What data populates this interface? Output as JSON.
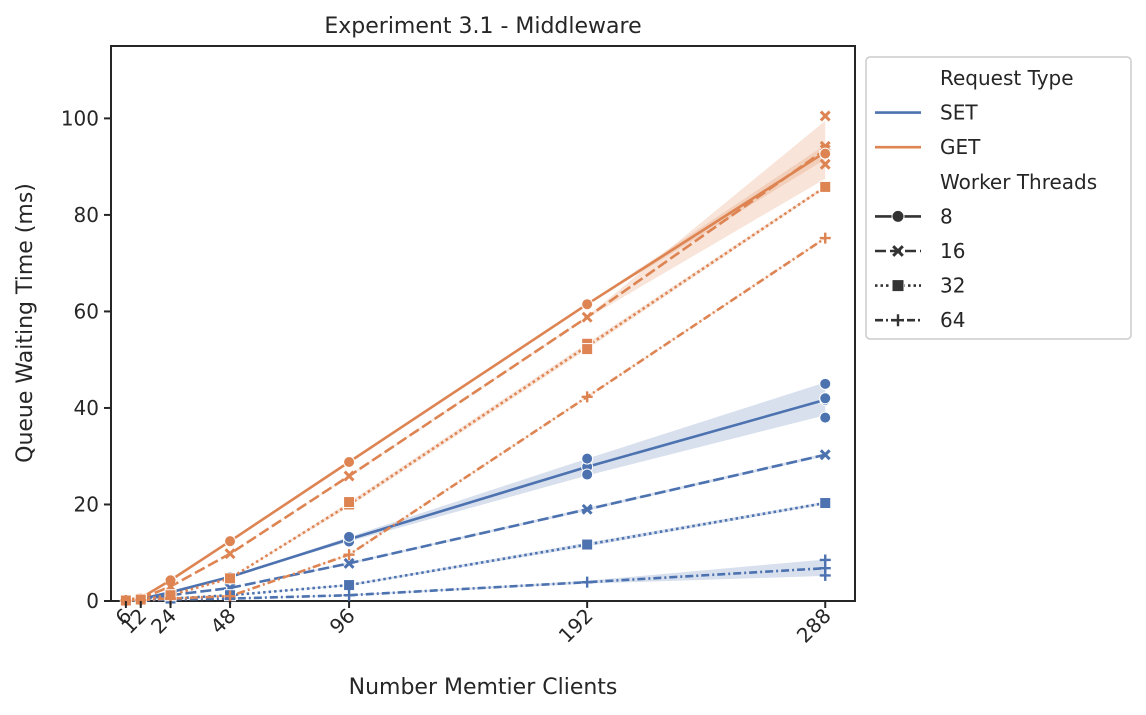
{
  "chart_data": {
    "type": "line",
    "title": "Experiment 3.1 - Middleware",
    "xlabel": "Number Memtier Clients",
    "ylabel": "Queue Waiting Time (ms)",
    "x": [
      6,
      12,
      24,
      48,
      96,
      192,
      288
    ],
    "xticks": [
      "6",
      "12",
      "24",
      "48",
      "96",
      "192",
      "288"
    ],
    "xlim": [
      0,
      300
    ],
    "ylim": [
      0,
      115
    ],
    "yticks": [
      0,
      20,
      40,
      60,
      80,
      100
    ],
    "ytick_labels": [
      "0",
      "20",
      "40",
      "60",
      "80",
      "100"
    ],
    "grid": false,
    "legend": {
      "placement": "outside-right",
      "hue_title": "Request Type",
      "style_title": "Worker Threads",
      "hue_entries": [
        {
          "label": "SET",
          "color": "#4c72b0"
        },
        {
          "label": "GET",
          "color": "#dd8452"
        }
      ],
      "style_entries": [
        {
          "label": "8",
          "dash": "solid",
          "marker": "circle"
        },
        {
          "label": "16",
          "dash": "dashed",
          "marker": "x"
        },
        {
          "label": "32",
          "dash": "dotted",
          "marker": "square"
        },
        {
          "label": "64",
          "dash": "dashdot",
          "marker": "plus"
        }
      ]
    },
    "series": [
      {
        "hue": "SET",
        "threads": "8",
        "color": "#4c72b0",
        "dash": "solid",
        "marker": "circle",
        "values": [
          0.2,
          0.4,
          1.8,
          5.0,
          12.8,
          27.8,
          41.7
        ],
        "band": [
          [
            0.2,
            0.2
          ],
          [
            0.4,
            0.4
          ],
          [
            1.8,
            1.8
          ],
          [
            5.0,
            5.0
          ],
          [
            12.3,
            13.3
          ],
          [
            26.0,
            29.5
          ],
          [
            38.5,
            45.3
          ]
        ]
      },
      {
        "hue": "SET",
        "threads": "16",
        "color": "#4c72b0",
        "dash": "dashed",
        "marker": "x",
        "values": [
          0.1,
          0.3,
          1.2,
          2.7,
          7.8,
          19.0,
          30.3
        ],
        "band": [
          [
            0.1,
            0.1
          ],
          [
            0.3,
            0.3
          ],
          [
            1.2,
            1.2
          ],
          [
            2.7,
            2.7
          ],
          [
            7.6,
            8.0
          ],
          [
            18.7,
            19.3
          ],
          [
            30.0,
            30.6
          ]
        ]
      },
      {
        "hue": "SET",
        "threads": "32",
        "color": "#4c72b0",
        "dash": "dotted",
        "marker": "square",
        "values": [
          0.1,
          0.2,
          0.5,
          1.2,
          3.3,
          11.7,
          20.3
        ],
        "band": [
          [
            0.1,
            0.1
          ],
          [
            0.2,
            0.2
          ],
          [
            0.5,
            0.5
          ],
          [
            1.2,
            1.2
          ],
          [
            3.1,
            3.5
          ],
          [
            11.3,
            12.1
          ],
          [
            20.0,
            20.6
          ]
        ]
      },
      {
        "hue": "SET",
        "threads": "64",
        "color": "#4c72b0",
        "dash": "dashdot",
        "marker": "plus",
        "values": [
          0.1,
          0.1,
          0.3,
          0.5,
          1.2,
          3.9,
          6.8
        ],
        "band": [
          [
            0.1,
            0.1
          ],
          [
            0.1,
            0.1
          ],
          [
            0.3,
            0.3
          ],
          [
            0.5,
            0.5
          ],
          [
            1.1,
            1.3
          ],
          [
            3.6,
            4.2
          ],
          [
            5.2,
            8.6
          ]
        ]
      },
      {
        "hue": "GET",
        "threads": "8",
        "color": "#dd8452",
        "dash": "solid",
        "marker": "circle",
        "values": [
          0.3,
          0.6,
          4.3,
          12.4,
          28.8,
          61.5,
          93.0
        ],
        "band": [
          [
            0.3,
            0.3
          ],
          [
            0.6,
            0.6
          ],
          [
            4.3,
            4.3
          ],
          [
            12.4,
            12.4
          ],
          [
            28.6,
            29.0
          ],
          [
            61.3,
            61.7
          ],
          [
            91.5,
            94.5
          ]
        ]
      },
      {
        "hue": "GET",
        "threads": "16",
        "color": "#dd8452",
        "dash": "dashed",
        "marker": "x",
        "values": [
          0.2,
          0.5,
          3.0,
          9.8,
          25.9,
          58.8,
          93.5
        ],
        "band": [
          [
            0.2,
            0.2
          ],
          [
            0.5,
            0.5
          ],
          [
            3.0,
            3.0
          ],
          [
            9.8,
            9.8
          ],
          [
            25.7,
            26.1
          ],
          [
            58.6,
            59.0
          ],
          [
            87.5,
            99.5
          ]
        ]
      },
      {
        "hue": "GET",
        "threads": "32",
        "color": "#dd8452",
        "dash": "dotted",
        "marker": "square",
        "values": [
          0.1,
          0.3,
          1.2,
          4.7,
          20.0,
          52.8,
          85.8
        ],
        "band": [
          [
            0.1,
            0.1
          ],
          [
            0.3,
            0.3
          ],
          [
            1.2,
            1.2
          ],
          [
            4.7,
            4.7
          ],
          [
            19.5,
            20.5
          ],
          [
            52.2,
            53.4
          ],
          [
            85.5,
            86.1
          ]
        ]
      },
      {
        "hue": "GET",
        "threads": "64",
        "color": "#dd8452",
        "dash": "dashdot",
        "marker": "plus",
        "values": [
          0.1,
          0.2,
          0.5,
          1.0,
          9.6,
          42.3,
          75.2
        ],
        "band": [
          [
            0.1,
            0.1
          ],
          [
            0.2,
            0.2
          ],
          [
            0.5,
            0.5
          ],
          [
            1.0,
            1.0
          ],
          [
            9.4,
            9.8
          ],
          [
            42.1,
            42.5
          ],
          [
            75.0,
            75.4
          ]
        ]
      }
    ],
    "points": [
      {
        "series": "SET-8",
        "pts": [
          [
            192,
            29.5
          ],
          [
            192,
            26.2
          ],
          [
            288,
            45.0
          ],
          [
            288,
            42.0
          ],
          [
            288,
            38.0
          ],
          [
            96,
            12.3
          ],
          [
            96,
            13.3
          ]
        ]
      },
      {
        "series": "SET-64",
        "pts": [
          [
            288,
            8.5
          ],
          [
            288,
            5.3
          ]
        ]
      },
      {
        "series": "GET-16",
        "pts": [
          [
            288,
            100.5
          ],
          [
            288,
            94.2
          ],
          [
            288,
            90.5
          ]
        ]
      },
      {
        "series": "GET-32",
        "pts": [
          [
            96,
            20.5
          ],
          [
            192,
            53.3
          ],
          [
            192,
            52.2
          ]
        ]
      },
      {
        "series": "GET-8",
        "pts": [
          [
            288,
            92.7
          ]
        ]
      }
    ]
  }
}
